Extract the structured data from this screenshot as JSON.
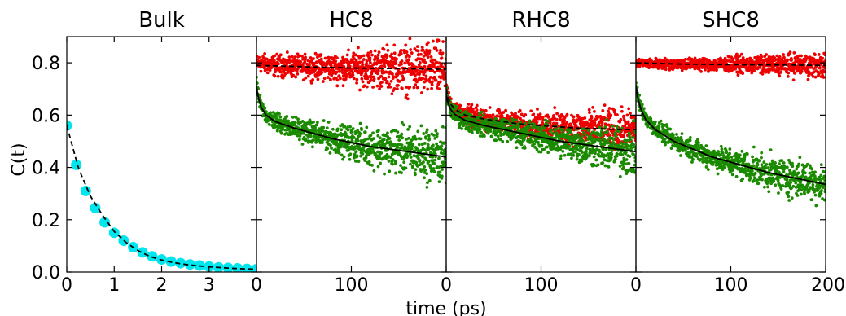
{
  "figure": {
    "ylabel": "C(t)",
    "xlabel": "time (ps)"
  },
  "chart_data": [
    {
      "type": "scatter",
      "title": "Bulk",
      "xlim": [
        0,
        4
      ],
      "ylim": [
        0,
        0.9
      ],
      "xticks": [
        0,
        1,
        2,
        3
      ],
      "yticks": [
        0.0,
        0.2,
        0.4,
        0.6,
        0.8
      ],
      "grid": false,
      "series": [
        {
          "color": "#00e5ee",
          "marker": "circle-large",
          "x": [
            0,
            0.2,
            0.4,
            0.6,
            0.8,
            1.0,
            1.2,
            1.4,
            1.6,
            1.8,
            2.0,
            2.2,
            2.4,
            2.6,
            2.8,
            3.0,
            3.2,
            3.4,
            3.6,
            3.8,
            4.0
          ],
          "y": [
            0.56,
            0.41,
            0.31,
            0.245,
            0.19,
            0.15,
            0.12,
            0.095,
            0.075,
            0.06,
            0.048,
            0.04,
            0.034,
            0.029,
            0.025,
            0.021,
            0.018,
            0.016,
            0.014,
            0.012,
            0.011
          ]
        }
      ],
      "fits": [
        {
          "style": "dashed",
          "color": "#000000",
          "x": [
            0,
            0.25,
            0.5,
            0.75,
            1.0,
            1.25,
            1.5,
            1.75,
            2.0,
            2.25,
            2.5,
            2.75,
            3.0,
            3.25,
            3.5,
            3.75,
            4.0
          ],
          "y": [
            0.56,
            0.395,
            0.29,
            0.218,
            0.155,
            0.113,
            0.082,
            0.06,
            0.046,
            0.036,
            0.029,
            0.024,
            0.02,
            0.017,
            0.014,
            0.012,
            0.011
          ]
        }
      ]
    },
    {
      "type": "scatter",
      "title": "HC8",
      "xlim": [
        0,
        200
      ],
      "ylim": [
        0,
        0.9
      ],
      "xticks": [
        0,
        100
      ],
      "yticks": [
        0.0,
        0.2,
        0.4,
        0.6,
        0.8
      ],
      "grid": false,
      "series": [
        {
          "color": "#ee0000",
          "marker": "dot",
          "x": [
            0,
            10,
            20,
            40,
            60,
            80,
            100,
            120,
            140,
            160,
            180,
            200
          ],
          "y": [
            0.8,
            0.795,
            0.79,
            0.785,
            0.785,
            0.78,
            0.78,
            0.78,
            0.78,
            0.775,
            0.775,
            0.775
          ],
          "spread": [
            0.015,
            0.018,
            0.02,
            0.02,
            0.022,
            0.025,
            0.03,
            0.035,
            0.04,
            0.045,
            0.05,
            0.05
          ]
        },
        {
          "color": "#1a8a00",
          "marker": "dot",
          "x": [
            0,
            2,
            5,
            10,
            20,
            40,
            60,
            80,
            100,
            120,
            140,
            160,
            180,
            200
          ],
          "y": [
            0.72,
            0.67,
            0.63,
            0.6,
            0.575,
            0.55,
            0.53,
            0.51,
            0.495,
            0.48,
            0.47,
            0.46,
            0.45,
            0.44
          ],
          "spread": [
            0.01,
            0.012,
            0.015,
            0.015,
            0.018,
            0.02,
            0.022,
            0.025,
            0.03,
            0.035,
            0.04,
            0.045,
            0.05,
            0.05
          ]
        }
      ],
      "fits": [
        {
          "style": "dashed",
          "color": "#000000",
          "x": [
            0,
            50,
            100,
            150,
            200
          ],
          "y": [
            0.79,
            0.785,
            0.78,
            0.778,
            0.775
          ]
        },
        {
          "style": "solid",
          "color": "#000000",
          "x": [
            0,
            2,
            5,
            10,
            20,
            40,
            60,
            80,
            100,
            120,
            140,
            160,
            180,
            200
          ],
          "y": [
            0.71,
            0.665,
            0.63,
            0.6,
            0.575,
            0.55,
            0.53,
            0.51,
            0.495,
            0.48,
            0.47,
            0.46,
            0.45,
            0.44
          ]
        }
      ]
    },
    {
      "type": "scatter",
      "title": "RHC8",
      "xlim": [
        0,
        200
      ],
      "ylim": [
        0,
        0.9
      ],
      "xticks": [
        0,
        100
      ],
      "yticks": [
        0.0,
        0.2,
        0.4,
        0.6,
        0.8
      ],
      "grid": false,
      "series": [
        {
          "color": "#ee0000",
          "marker": "dot",
          "x": [
            0,
            2,
            5,
            10,
            20,
            40,
            60,
            80,
            100,
            120,
            140,
            160,
            180,
            200
          ],
          "y": [
            0.71,
            0.67,
            0.64,
            0.62,
            0.6,
            0.585,
            0.575,
            0.565,
            0.56,
            0.555,
            0.55,
            0.548,
            0.545,
            0.545
          ],
          "spread": [
            0.01,
            0.012,
            0.015,
            0.015,
            0.018,
            0.02,
            0.02,
            0.022,
            0.025,
            0.03,
            0.03,
            0.035,
            0.035,
            0.035
          ]
        },
        {
          "color": "#1a8a00",
          "marker": "dot",
          "x": [
            0,
            2,
            5,
            10,
            20,
            40,
            60,
            80,
            100,
            120,
            140,
            160,
            180,
            200
          ],
          "y": [
            0.69,
            0.65,
            0.62,
            0.6,
            0.58,
            0.56,
            0.545,
            0.53,
            0.515,
            0.5,
            0.49,
            0.48,
            0.47,
            0.46
          ],
          "spread": [
            0.01,
            0.012,
            0.015,
            0.015,
            0.018,
            0.02,
            0.022,
            0.025,
            0.028,
            0.03,
            0.035,
            0.04,
            0.045,
            0.045
          ]
        }
      ],
      "fits": [
        {
          "style": "dashed",
          "color": "#000000",
          "x": [
            0,
            2,
            5,
            10,
            20,
            40,
            60,
            80,
            100,
            120,
            140,
            160,
            180,
            200
          ],
          "y": [
            0.7,
            0.665,
            0.64,
            0.62,
            0.6,
            0.585,
            0.575,
            0.565,
            0.56,
            0.555,
            0.55,
            0.548,
            0.545,
            0.545
          ]
        },
        {
          "style": "solid",
          "color": "#000000",
          "x": [
            0,
            2,
            5,
            10,
            20,
            40,
            60,
            80,
            100,
            120,
            140,
            160,
            180,
            200
          ],
          "y": [
            0.68,
            0.645,
            0.62,
            0.6,
            0.58,
            0.56,
            0.545,
            0.53,
            0.515,
            0.5,
            0.49,
            0.48,
            0.47,
            0.46
          ]
        }
      ]
    },
    {
      "type": "scatter",
      "title": "SHC8",
      "xlim": [
        0,
        200
      ],
      "ylim": [
        0,
        0.9
      ],
      "xticks": [
        0,
        100,
        200
      ],
      "yticks": [
        0.0,
        0.2,
        0.4,
        0.6,
        0.8
      ],
      "grid": false,
      "series": [
        {
          "color": "#ee0000",
          "marker": "dot",
          "x": [
            0,
            10,
            20,
            40,
            60,
            80,
            100,
            120,
            140,
            160,
            180,
            200
          ],
          "y": [
            0.8,
            0.798,
            0.796,
            0.795,
            0.795,
            0.794,
            0.793,
            0.792,
            0.792,
            0.792,
            0.79,
            0.79
          ],
          "spread": [
            0.008,
            0.008,
            0.01,
            0.01,
            0.012,
            0.012,
            0.015,
            0.015,
            0.018,
            0.02,
            0.022,
            0.022
          ]
        },
        {
          "color": "#1a8a00",
          "marker": "dot",
          "x": [
            0,
            2,
            5,
            10,
            20,
            40,
            60,
            80,
            100,
            120,
            140,
            160,
            180,
            200
          ],
          "y": [
            0.72,
            0.67,
            0.63,
            0.59,
            0.55,
            0.5,
            0.47,
            0.44,
            0.42,
            0.4,
            0.38,
            0.365,
            0.35,
            0.335
          ],
          "spread": [
            0.01,
            0.012,
            0.014,
            0.015,
            0.016,
            0.018,
            0.02,
            0.022,
            0.025,
            0.028,
            0.03,
            0.035,
            0.035,
            0.035
          ]
        }
      ],
      "fits": [
        {
          "style": "dashed",
          "color": "#000000",
          "x": [
            0,
            50,
            100,
            150,
            200
          ],
          "y": [
            0.8,
            0.795,
            0.793,
            0.792,
            0.79
          ]
        },
        {
          "style": "solid",
          "color": "#000000",
          "x": [
            0,
            2,
            5,
            10,
            20,
            40,
            60,
            80,
            100,
            120,
            140,
            160,
            180,
            200
          ],
          "y": [
            0.71,
            0.665,
            0.625,
            0.585,
            0.545,
            0.5,
            0.47,
            0.44,
            0.42,
            0.4,
            0.38,
            0.365,
            0.35,
            0.335
          ]
        }
      ]
    }
  ]
}
